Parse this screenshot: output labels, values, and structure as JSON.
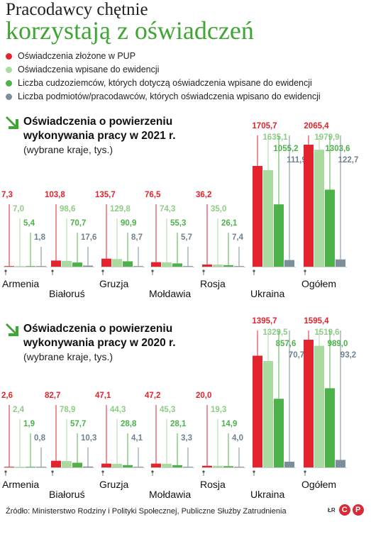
{
  "header": {
    "title_line1": "Pracodawcy chętnie",
    "title_line2": "korzystają z oświadczeń"
  },
  "legend": [
    {
      "label": "Oświadczenia złożone w PUP",
      "color": "#e3232d"
    },
    {
      "label": "Oświadczenia wpisane do ewidencji",
      "color": "#a9dba0"
    },
    {
      "label": "Liczba cudzoziemców, których dotyczą oświadczenia wpisane do ewidencji",
      "color": "#4db24a"
    },
    {
      "label": "Liczba podmiotów/pracodawców, których oświadczenia wpisano do ewidencji",
      "color": "#7a8e9b"
    }
  ],
  "colors": {
    "title_green": "#3fa535",
    "arrow_green": "#3fa535"
  },
  "icons": {
    "arrow": "arrow-down-right-icon"
  },
  "chart_data": [
    {
      "type": "bar",
      "title": "Oświadczenia o powierzeniu wykonywania pracy w 2021 r.",
      "subtitle": "(wybrane kraje, tys.)",
      "categories": [
        "Armenia",
        "Białoruś",
        "Gruzja",
        "Mołdawia",
        "Rosja",
        "Ukraina",
        "Ogółem"
      ],
      "series": [
        {
          "name": "Oświadczenia złożone w PUP",
          "values": [
            7.3,
            103.8,
            135.7,
            76.5,
            36.2,
            1705.7,
            2065.4
          ]
        },
        {
          "name": "Oświadczenia wpisane do ewidencji",
          "values": [
            7.0,
            98.6,
            129.8,
            74.3,
            35.0,
            1635.1,
            1979.9
          ]
        },
        {
          "name": "Liczba cudzoziemców, których dotyczą oświadczenia wpisane do ewidencji",
          "values": [
            5.4,
            70.7,
            90.9,
            55.3,
            26.1,
            1055.2,
            1303.6
          ]
        },
        {
          "name": "Liczba podmiotów/pracodawców, których oświadczenia wpisano do ewidencji",
          "values": [
            1.8,
            17.6,
            8.7,
            5.7,
            7.4,
            111.9,
            122.7
          ]
        }
      ],
      "labels": [
        [
          "7,3",
          "103,8",
          "135,7",
          "76,5",
          "36,2",
          "1705,7",
          "2065,4"
        ],
        [
          "7,0",
          "98,6",
          "129,8",
          "74,3",
          "35,0",
          "1635,1",
          "1979,9"
        ],
        [
          "5,4",
          "70,7",
          "90,9",
          "55,3",
          "26,1",
          "1055,2",
          "1303,6"
        ],
        [
          "1,8",
          "17,6",
          "8,7",
          "5,7",
          "7,4",
          "111,9",
          "122,7"
        ]
      ],
      "ylim": [
        0,
        2065.4
      ]
    },
    {
      "type": "bar",
      "title": "Oświadczenia o powierzeniu wykonywania pracy w 2020 r.",
      "subtitle": "(wybrane kraje, tys.)",
      "categories": [
        "Armenia",
        "Białoruś",
        "Gruzja",
        "Mołdawia",
        "Rosja",
        "Ukraina",
        "Ogółem"
      ],
      "series": [
        {
          "name": "Oświadczenia złożone w PUP",
          "values": [
            2.6,
            82.7,
            47.1,
            47.2,
            20.0,
            1395.7,
            1595.4
          ]
        },
        {
          "name": "Oświadczenia wpisane do ewidencji",
          "values": [
            2.4,
            78.9,
            44.3,
            45.3,
            19.3,
            1329.5,
            1519.6
          ]
        },
        {
          "name": "Liczba cudzoziemców, których dotyczą oświadczenia wpisane do ewidencji",
          "values": [
            1.9,
            57.7,
            28.8,
            28.1,
            14.9,
            857.6,
            989.0
          ]
        },
        {
          "name": "Liczba podmiotów/pracodawców, których oświadczenia wpisano do ewidencji",
          "values": [
            0.8,
            10.3,
            4.1,
            3.3,
            4.0,
            70.7,
            93.2
          ]
        }
      ],
      "labels": [
        [
          "2,6",
          "82,7",
          "47,1",
          "47,2",
          "20,0",
          "1395,7",
          "1595,4"
        ],
        [
          "2,4",
          "78,9",
          "44,3",
          "45,3",
          "19,3",
          "1329,5",
          "1519,6"
        ],
        [
          "1,9",
          "57,7",
          "28,8",
          "28,1",
          "14,9",
          "857,6",
          "989,0"
        ],
        [
          "0,8",
          "10,3",
          "4,1",
          "3,3",
          "4,0",
          "70,7",
          "93,2"
        ]
      ],
      "ylim": [
        0,
        1595.4
      ]
    }
  ],
  "source": "Źródło: Ministerstwo Rodziny i Polityki Społecznej, Publiczne Służby Zatrudnienia",
  "logo": {
    "letters": "ŁR",
    "c1": "C",
    "c2": "P"
  }
}
